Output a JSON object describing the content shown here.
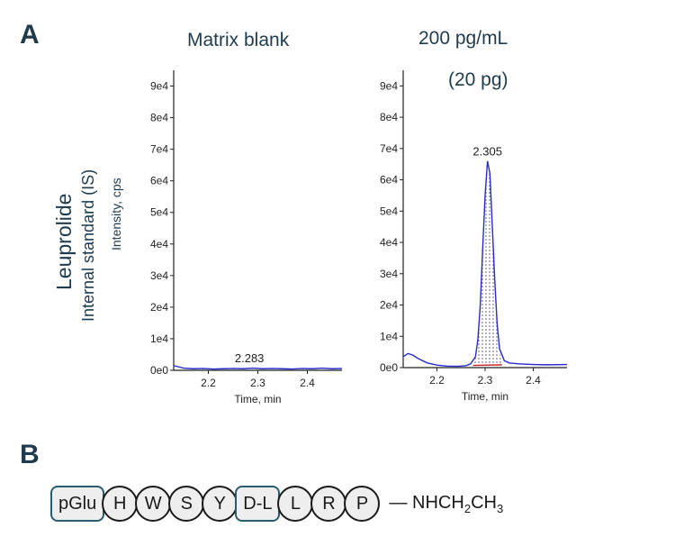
{
  "panels": {
    "a": "A",
    "b": "B"
  },
  "left_labels": {
    "analyte": "Leuprolide",
    "is": "Internal standard (IS)",
    "axis": "Intensity, cps"
  },
  "chart_data": [
    {
      "type": "line",
      "title": "Matrix blank",
      "subtitle": "",
      "xlabel": "Time, min",
      "ylabel": "Intensity, cps",
      "xlim": [
        2.13,
        2.47
      ],
      "ylim": [
        0,
        95000
      ],
      "x_ticks": [
        2.2,
        2.3,
        2.4
      ],
      "x_tick_labels": [
        "2.2",
        "2.3",
        "2.4"
      ],
      "y_ticks": [
        0,
        10000,
        20000,
        30000,
        40000,
        50000,
        60000,
        70000,
        80000,
        90000
      ],
      "y_tick_labels": [
        "0e0",
        "1e4",
        "2e4",
        "3e4",
        "4e4",
        "5e4",
        "6e4",
        "7e4",
        "8e4",
        "9e4"
      ],
      "series": [
        {
          "color": "#2a2acc",
          "x": [
            2.13,
            2.15,
            2.17,
            2.19,
            2.21,
            2.23,
            2.25,
            2.27,
            2.29,
            2.31,
            2.33,
            2.35,
            2.37,
            2.39,
            2.41,
            2.43,
            2.45,
            2.47
          ],
          "y": [
            1500,
            700,
            500,
            600,
            400,
            500,
            600,
            500,
            700,
            500,
            600,
            500,
            400,
            600,
            500,
            700,
            500,
            600
          ]
        }
      ],
      "peak_label": {
        "text": "2.283",
        "x": 2.283,
        "y": 900
      }
    },
    {
      "type": "line",
      "title": "200 pg/mL",
      "subtitle": "(20 pg)",
      "xlabel": "Time, min",
      "ylabel": "",
      "xlim": [
        2.13,
        2.47
      ],
      "ylim": [
        0,
        95000
      ],
      "x_ticks": [
        2.2,
        2.3,
        2.4
      ],
      "x_tick_labels": [
        "2.2",
        "2.3",
        "2.4"
      ],
      "y_ticks": [
        0,
        10000,
        20000,
        30000,
        40000,
        50000,
        60000,
        70000,
        80000,
        90000
      ],
      "y_tick_labels": [
        "0e0",
        "1e4",
        "2e4",
        "3e4",
        "4e4",
        "5e4",
        "6e4",
        "7e4",
        "8e4",
        "9e4"
      ],
      "series": [
        {
          "color": "#2a2acc",
          "x": [
            2.13,
            2.14,
            2.15,
            2.16,
            2.18,
            2.2,
            2.22,
            2.24,
            2.26,
            2.27,
            2.28,
            2.285,
            2.29,
            2.295,
            2.3,
            2.305,
            2.31,
            2.315,
            2.32,
            2.325,
            2.33,
            2.34,
            2.35,
            2.37,
            2.4,
            2.43,
            2.47
          ],
          "y": [
            3500,
            4500,
            4000,
            3000,
            1500,
            800,
            500,
            400,
            600,
            1200,
            3500,
            9000,
            20000,
            38000,
            55000,
            66000,
            62000,
            45000,
            28000,
            14000,
            6000,
            2200,
            1500,
            1200,
            1000,
            900,
            1000
          ]
        }
      ],
      "baseline": {
        "color": "#cc2222",
        "x": [
          2.275,
          2.335
        ],
        "y": [
          700,
          900
        ]
      },
      "peak_label": {
        "text": "2.305",
        "x": 2.305,
        "y": 66000
      }
    }
  ],
  "sequence": {
    "residues": [
      {
        "label": "pGlu",
        "shape": "box"
      },
      {
        "label": "H",
        "shape": "circle"
      },
      {
        "label": "W",
        "shape": "circle"
      },
      {
        "label": "S",
        "shape": "circle"
      },
      {
        "label": "Y",
        "shape": "circle"
      },
      {
        "label": "D-L",
        "shape": "box"
      },
      {
        "label": "L",
        "shape": "circle"
      },
      {
        "label": "R",
        "shape": "circle"
      },
      {
        "label": "P",
        "shape": "circle"
      }
    ],
    "dash": "—",
    "terminal": {
      "a": "NHCH",
      "sub1": "2",
      "b": "CH",
      "sub2": "3"
    }
  }
}
